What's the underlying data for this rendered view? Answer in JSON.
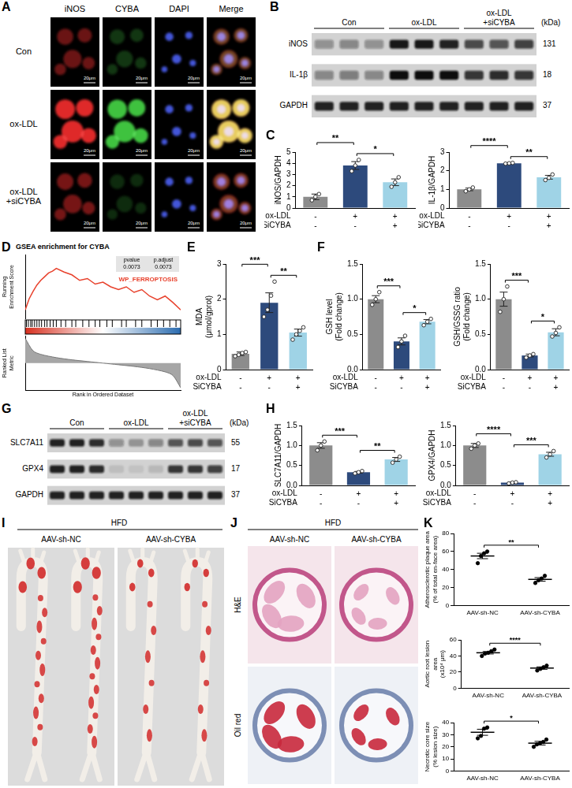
{
  "chart_data": [
    {
      "panel": "C",
      "type": "bar",
      "y_label": "iNOS/GAPDH",
      "categories": [
        [
          "-",
          "-"
        ],
        [
          "+",
          "-"
        ],
        [
          "+",
          "+"
        ]
      ],
      "row_labels": [
        "ox-LDL",
        "SiCYBA"
      ],
      "values": [
        1.0,
        3.8,
        2.3
      ],
      "errors": [
        0.25,
        0.35,
        0.3
      ],
      "points": [
        [
          0.7,
          1.0,
          1.25
        ],
        [
          3.3,
          3.8,
          4.3
        ],
        [
          1.9,
          2.3,
          2.75
        ]
      ],
      "colors": [
        "#8c8c8c",
        "#2d4a7c",
        "#9fd3e6"
      ],
      "ylim": [
        0,
        5
      ],
      "yticks": [
        0,
        1,
        2,
        3,
        4,
        5
      ],
      "grid": false,
      "significance": [
        {
          "from": 0,
          "to": 1,
          "label": "**"
        },
        {
          "from": 1,
          "to": 2,
          "label": "*"
        }
      ]
    },
    {
      "type": "bar",
      "y_label": "IL-1β/GAPDH",
      "categories": [
        [
          "-",
          "-"
        ],
        [
          "+",
          "-"
        ],
        [
          "+",
          "+"
        ]
      ],
      "row_labels": [
        "ox-LDL",
        "SiCYBA"
      ],
      "values": [
        1.0,
        2.4,
        1.65
      ],
      "errors": [
        0.07,
        0.02,
        0.1
      ],
      "points": [
        [
          0.9,
          1.0,
          1.1
        ],
        [
          2.38,
          2.4,
          2.42
        ],
        [
          1.5,
          1.62,
          1.8
        ]
      ],
      "colors": [
        "#8c8c8c",
        "#2d4a7c",
        "#9fd3e6"
      ],
      "ylim": [
        0,
        3
      ],
      "yticks": [
        0,
        1,
        2,
        3
      ],
      "grid": false,
      "significance": [
        {
          "from": 0,
          "to": 1,
          "label": "****"
        },
        {
          "from": 1,
          "to": 2,
          "label": "**"
        }
      ]
    },
    {
      "panel": "D",
      "type": "line",
      "title": "GSEA enrichment for CYBA",
      "y_label": "Running Enrichment Score",
      "x": [
        0,
        500,
        1000,
        1500,
        2000,
        2500,
        3000,
        3500,
        4000,
        5000,
        6000,
        7000,
        8000,
        9000,
        10000,
        11000,
        12000,
        13000,
        14000,
        15000,
        16000,
        17000,
        18000,
        19000,
        20000
      ],
      "series": [
        {
          "name": "WP_FERROPTOSIS",
          "color": "#e8412c",
          "values": [
            0,
            0.12,
            0.2,
            0.27,
            0.32,
            0.36,
            0.4,
            0.42,
            0.45,
            0.41,
            0.38,
            0.32,
            0.34,
            0.28,
            0.3,
            0.25,
            0.22,
            0.25,
            0.19,
            0.22,
            0.15,
            0.11,
            0.15,
            0.08,
            0
          ]
        }
      ],
      "xlim": [
        0,
        20000
      ],
      "ylim": [
        -0.1,
        0.6
      ],
      "tick_labels": false,
      "grid": false,
      "stats": {
        "headers": [
          "pvalue",
          "p.adjust"
        ],
        "values": [
          0.0073,
          0.0073
        ]
      },
      "hits": [
        150,
        400,
        700,
        900,
        1200,
        1500,
        1800,
        2100,
        2500,
        2800,
        3200,
        3600,
        4000,
        4600,
        5200,
        6000,
        6500,
        7400,
        8200,
        9000,
        9600,
        10500,
        11200,
        12400,
        13000,
        14200,
        15000,
        16200,
        17000,
        17800,
        18600,
        19400
      ],
      "ranked_metric": {
        "y_label": "Ranked List Metric",
        "x_label": "Rank in Ordered Dataset",
        "x": [
          0,
          1000,
          2000,
          4000,
          6000,
          8000,
          10000,
          12000,
          14000,
          16000,
          18000,
          19000,
          20000
        ],
        "values": [
          0.9,
          0.45,
          0.32,
          0.2,
          0.12,
          0.06,
          0.0,
          -0.06,
          -0.12,
          -0.2,
          -0.32,
          -0.45,
          -0.9
        ],
        "ylim": [
          -1,
          1
        ]
      }
    },
    {
      "panel": "E",
      "type": "bar",
      "y_label": "MDA (μmol/gprot)",
      "categories": [
        [
          "-",
          "-"
        ],
        [
          "+",
          "-"
        ],
        [
          "+",
          "+"
        ]
      ],
      "row_labels": [
        "ox-LDL",
        "SiCYBA"
      ],
      "values": [
        0.45,
        1.9,
        1.05
      ],
      "errors": [
        0.05,
        0.28,
        0.1
      ],
      "points": [
        [
          0.38,
          0.42,
          0.47,
          0.5
        ],
        [
          1.5,
          1.7,
          2.1,
          2.5
        ],
        [
          0.85,
          1.0,
          1.1,
          1.2
        ]
      ],
      "colors": [
        "#8c8c8c",
        "#2d4a7c",
        "#9fd3e6"
      ],
      "ylim": [
        0,
        3
      ],
      "yticks": [
        0,
        1,
        2,
        3
      ],
      "grid": false,
      "significance": [
        {
          "from": 0,
          "to": 1,
          "label": "***"
        },
        {
          "from": 1,
          "to": 2,
          "label": "**"
        }
      ]
    },
    {
      "panel": "F",
      "type": "bar",
      "y_label": "GSH level (Fold change)",
      "categories": [
        [
          "-",
          "-"
        ],
        [
          "+",
          "-"
        ],
        [
          "+",
          "+"
        ]
      ],
      "row_labels": [
        "ox-LDL",
        "SiCYBA"
      ],
      "values": [
        1.0,
        0.4,
        0.68
      ],
      "errors": [
        0.05,
        0.05,
        0.03
      ],
      "points": [
        [
          0.92,
          1.0,
          1.1
        ],
        [
          0.32,
          0.4,
          0.48
        ],
        [
          0.63,
          0.68,
          0.72
        ]
      ],
      "colors": [
        "#8c8c8c",
        "#2d4a7c",
        "#9fd3e6"
      ],
      "ylim": [
        0,
        1.5
      ],
      "yticks": [
        {
          "value": 0,
          "label": "0.0"
        },
        {
          "value": 0.5,
          "label": "0.5"
        },
        {
          "value": 1,
          "label": "1.0"
        },
        {
          "value": 1.5,
          "label": "1.5"
        }
      ],
      "grid": false,
      "significance": [
        {
          "from": 0,
          "to": 1,
          "label": "***"
        },
        {
          "from": 1,
          "to": 2,
          "label": "*"
        }
      ]
    },
    {
      "type": "bar",
      "y_label": "GSH/GSSG ratio (Fold change)",
      "categories": [
        [
          "-",
          "-"
        ],
        [
          "+",
          "-"
        ],
        [
          "+",
          "+"
        ]
      ],
      "row_labels": [
        "ox-LDL",
        "SiCYBA"
      ],
      "values": [
        1.0,
        0.2,
        0.53
      ],
      "errors": [
        0.1,
        0.02,
        0.05
      ],
      "points": [
        [
          0.82,
          1.0,
          1.18
        ],
        [
          0.17,
          0.2,
          0.22
        ],
        [
          0.47,
          0.52,
          0.6
        ]
      ],
      "colors": [
        "#8c8c8c",
        "#2d4a7c",
        "#9fd3e6"
      ],
      "ylim": [
        0,
        1.5
      ],
      "yticks": [
        {
          "value": 0,
          "label": "0.0"
        },
        {
          "value": 0.5,
          "label": "0.5"
        },
        {
          "value": 1,
          "label": "1.0"
        },
        {
          "value": 1.5,
          "label": "1.5"
        }
      ],
      "grid": false,
      "significance": [
        {
          "from": 0,
          "to": 1,
          "label": "***"
        },
        {
          "from": 1,
          "to": 2,
          "label": "*"
        }
      ]
    },
    {
      "panel": "H",
      "type": "bar",
      "y_label": "SLC7A11/GAPDH",
      "categories": [
        [
          "-",
          "-"
        ],
        [
          "+",
          "-"
        ],
        [
          "+",
          "+"
        ]
      ],
      "row_labels": [
        "ox-LDL",
        "SiCYBA"
      ],
      "values": [
        1.0,
        0.33,
        0.65
      ],
      "errors": [
        0.07,
        0.02,
        0.05
      ],
      "points": [
        [
          0.88,
          1.0,
          1.1
        ],
        [
          0.3,
          0.33,
          0.36
        ],
        [
          0.57,
          0.65,
          0.72
        ]
      ],
      "colors": [
        "#8c8c8c",
        "#2d4a7c",
        "#9fd3e6"
      ],
      "ylim": [
        0,
        1.5
      ],
      "yticks": [
        {
          "value": 0,
          "label": "0.0"
        },
        {
          "value": 0.5,
          "label": "0.5"
        },
        {
          "value": 1,
          "label": "1.0"
        },
        {
          "value": 1.5,
          "label": "1.5"
        }
      ],
      "grid": false,
      "significance": [
        {
          "from": 0,
          "to": 1,
          "label": "***"
        },
        {
          "from": 1,
          "to": 2,
          "label": "**"
        }
      ]
    },
    {
      "type": "bar",
      "y_label": "GPX4/GAPDH",
      "categories": [
        [
          "-",
          "-"
        ],
        [
          "+",
          "-"
        ],
        [
          "+",
          "+"
        ]
      ],
      "row_labels": [
        "ox-LDL",
        "SiCYBA"
      ],
      "values": [
        1.0,
        0.07,
        0.78
      ],
      "errors": [
        0.05,
        0.01,
        0.05
      ],
      "points": [
        [
          0.92,
          1.0,
          1.05
        ],
        [
          0.05,
          0.07,
          0.08
        ],
        [
          0.7,
          0.78,
          0.86
        ]
      ],
      "colors": [
        "#8c8c8c",
        "#2d4a7c",
        "#9fd3e6"
      ],
      "ylim": [
        0,
        1.5
      ],
      "yticks": [
        {
          "value": 0,
          "label": "0.0"
        },
        {
          "value": 0.5,
          "label": "0.5"
        },
        {
          "value": 1,
          "label": "1.0"
        },
        {
          "value": 1.5,
          "label": "1.5"
        }
      ],
      "grid": false,
      "significance": [
        {
          "from": 0,
          "to": 1,
          "label": "****"
        },
        {
          "from": 1,
          "to": 2,
          "label": "***"
        }
      ]
    },
    {
      "panel": "K",
      "type": "scatter",
      "y_label": "Atherosclerotic plaque area (% of total en-face area)",
      "categories": [
        "AAV-sh-NC",
        "AAV-sh-CYBA"
      ],
      "values": [
        55,
        29
      ],
      "errors": [
        3,
        2
      ],
      "points": [
        [
          47,
          55,
          58,
          60
        ],
        [
          25,
          28,
          30,
          33
        ]
      ],
      "color": "#000000",
      "ylim": [
        0,
        80
      ],
      "yticks": [
        0,
        20,
        40,
        60,
        80
      ],
      "grid": false,
      "significance": [
        {
          "from": 0,
          "to": 1,
          "label": "**"
        }
      ]
    },
    {
      "type": "scatter",
      "y_label": "Aortic root lesion area(x10⁴ μm)",
      "categories": [
        "AAV-sh-NC",
        "AAV-sh-CYBA"
      ],
      "values": [
        44,
        25
      ],
      "errors": [
        1.5,
        1.5
      ],
      "points": [
        [
          40,
          43,
          44,
          46,
          48
        ],
        [
          22,
          24,
          26,
          28
        ]
      ],
      "color": "#000000",
      "ylim": [
        0,
        60
      ],
      "yticks": [
        0,
        20,
        40,
        60
      ],
      "grid": false,
      "significance": [
        {
          "from": 0,
          "to": 1,
          "label": "****"
        }
      ]
    },
    {
      "type": "scatter",
      "y_label": "Necrotic core size (% lesion size)",
      "categories": [
        "AAV-sh-NC",
        "AAV-sh-CYBA"
      ],
      "values": [
        32,
        23
      ],
      "errors": [
        2.5,
        1.5
      ],
      "points": [
        [
          27,
          29,
          35,
          36
        ],
        [
          20,
          22,
          23,
          24,
          26
        ]
      ],
      "color": "#000000",
      "ylim": [
        0,
        40
      ],
      "yticks": [
        0,
        10,
        20,
        30,
        40
      ],
      "grid": false,
      "significance": [
        {
          "from": 0,
          "to": 1,
          "label": "*"
        }
      ]
    }
  ],
  "figures": {
    "A": {
      "letter": "A",
      "columns": [
        "iNOS",
        "CYBA",
        "DAPI",
        "Merge"
      ],
      "rows": [
        {
          "label": "Con",
          "iNOS": 0.45,
          "CYBA": 0.25,
          "DAPI": 0.85
        },
        {
          "label": "ox-LDL",
          "iNOS": 0.95,
          "CYBA": 0.9,
          "DAPI": 0.85
        },
        {
          "label": "ox-LDL +siCYBA",
          "iNOS": 0.5,
          "CYBA": 0.2,
          "DAPI": 0.85
        }
      ],
      "scale_bar": "20μm"
    },
    "B": {
      "letter": "B",
      "groups": [
        "Con",
        "ox-LDL",
        "ox-LDL +siCYBA"
      ],
      "unit": "(kDa)",
      "rows": [
        {
          "label": "iNOS",
          "kda": 131,
          "bands": [
            0.35,
            0.4,
            0.35,
            0.95,
            0.95,
            0.9,
            0.7,
            0.65,
            0.75
          ]
        },
        {
          "label": "IL-1β",
          "kda": 18,
          "bands": [
            0.4,
            0.45,
            0.4,
            1,
            1,
            1,
            0.8,
            0.85,
            0.8
          ]
        },
        {
          "label": "GAPDH",
          "kda": 37,
          "bands": [
            0.9,
            0.9,
            0.9,
            0.9,
            0.9,
            0.9,
            0.9,
            0.9,
            0.9
          ]
        }
      ]
    },
    "G": {
      "letter": "G",
      "groups": [
        "Con",
        "ox-LDL",
        "ox-LDL +siCYBA"
      ],
      "unit": "(kDa)",
      "rows": [
        {
          "label": "SLC7A11",
          "kda": 55,
          "bands": [
            0.9,
            0.9,
            0.85,
            0.35,
            0.3,
            0.4,
            0.65,
            0.7,
            0.65
          ]
        },
        {
          "label": "GPX4",
          "kda": 17,
          "bands": [
            0.9,
            0.9,
            0.85,
            0.1,
            0.08,
            0.12,
            0.8,
            0.8,
            0.75
          ]
        },
        {
          "label": "GAPDH",
          "kda": 37,
          "bands": [
            0.9,
            0.9,
            0.9,
            0.9,
            0.9,
            0.9,
            0.9,
            0.9,
            0.9
          ]
        }
      ]
    },
    "I": {
      "letter": "I",
      "diet": "HFD",
      "groups": [
        {
          "label": "AAV-sh-NC",
          "plaque": [
            0.55,
            0.6
          ]
        },
        {
          "label": "AAV-sh-CYBA",
          "plaque": [
            0.3,
            0.28
          ]
        }
      ]
    },
    "J": {
      "letter": "J",
      "diet": "HFD",
      "columns": [
        "AAV-sh-NC",
        "AAV-sh-CYBA"
      ],
      "rows": [
        "H&E",
        "Oil red"
      ],
      "lesion": [
        0.45,
        0.25
      ]
    }
  }
}
